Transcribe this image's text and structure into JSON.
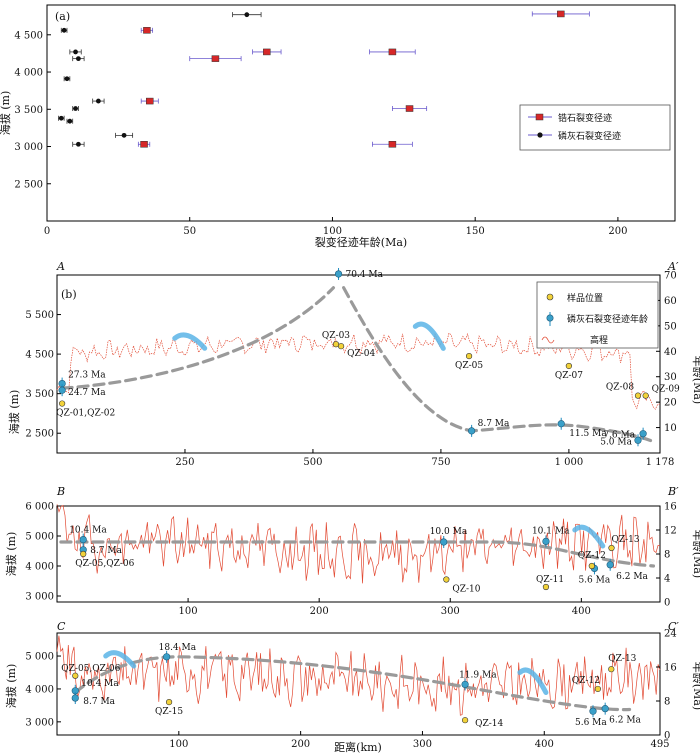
{
  "chart_data": [
    {
      "type": "scatter",
      "panel_label": "(a)",
      "xlabel": "裂变径迹年龄(Ma)",
      "ylabel": "海拔 (m)",
      "xlim": [
        0,
        220
      ],
      "ylim": [
        2000,
        4900
      ],
      "xticks": [
        0,
        50,
        100,
        150,
        200
      ],
      "yticks": [
        2500,
        3000,
        3500,
        4000,
        4500
      ],
      "legend": [
        "锆石裂变径迹",
        "磷灰石裂变径迹"
      ],
      "legend_position": "right",
      "series": [
        {
          "name": "锆石裂变径迹",
          "color": "#d62728",
          "points": [
            {
              "x": 35,
              "y": 4560,
              "err": 2
            },
            {
              "x": 180,
              "y": 4780,
              "err": 10
            },
            {
              "x": 77,
              "y": 4270,
              "err": 5
            },
            {
              "x": 59,
              "y": 4180,
              "err": 9
            },
            {
              "x": 121,
              "y": 4270,
              "err": 8
            },
            {
              "x": 36,
              "y": 3610,
              "err": 3
            },
            {
              "x": 127,
              "y": 3510,
              "err": 6
            },
            {
              "x": 34,
              "y": 3030,
              "err": 2
            },
            {
              "x": 121,
              "y": 3030,
              "err": 7
            }
          ]
        },
        {
          "name": "磷灰石裂变径迹",
          "color": "#111111",
          "points": [
            {
              "x": 70,
              "y": 4770,
              "err": 5
            },
            {
              "x": 6,
              "y": 4560,
              "err": 1
            },
            {
              "x": 10,
              "y": 4270,
              "err": 2
            },
            {
              "x": 11,
              "y": 4180,
              "err": 2
            },
            {
              "x": 7,
              "y": 3910,
              "err": 1
            },
            {
              "x": 18,
              "y": 3610,
              "err": 2
            },
            {
              "x": 10,
              "y": 3510,
              "err": 1
            },
            {
              "x": 5,
              "y": 3380,
              "err": 1
            },
            {
              "x": 8,
              "y": 3340,
              "err": 1
            },
            {
              "x": 27,
              "y": 3150,
              "err": 3
            },
            {
              "x": 11,
              "y": 3030,
              "err": 2
            }
          ]
        }
      ]
    },
    {
      "type": "line",
      "panel_label": "(b)",
      "profile_start": "A",
      "profile_end": "A′",
      "ylabel_left": "海拔 (m)",
      "ylabel_right": "年龄(Ma)",
      "xlim": [
        0,
        1178
      ],
      "ylim_left": [
        2000,
        6500
      ],
      "ylim_right": [
        0,
        70
      ],
      "xticks": [
        "250",
        "500",
        "750",
        "1 000",
        "1 178"
      ],
      "xtick_values": [
        250,
        500,
        750,
        1000,
        1178
      ],
      "yticks_left": [
        "2 500",
        "3 500",
        "4 500",
        "5 500"
      ],
      "ytick_left_values": [
        2500,
        3500,
        4500,
        5500
      ],
      "yticks_right": [
        10,
        20,
        30,
        40,
        50,
        60,
        70
      ],
      "legend": [
        "样品位置",
        "磷灰石裂变径迹年龄",
        "高程"
      ],
      "legend_position": "top-right",
      "ages": [
        {
          "x": 10,
          "age": 27.3,
          "label": "27.3 Ma"
        },
        {
          "x": 10,
          "age": 24.7,
          "label": "24.7 Ma"
        },
        {
          "x": 550,
          "age": 70.4,
          "label": "70.4 Ma"
        },
        {
          "x": 810,
          "age": 8.7,
          "label": "8.7 Ma"
        },
        {
          "x": 985,
          "age": 11.5,
          "label": "11.5 Ma"
        },
        {
          "x": 1145,
          "age": 7.6,
          "label": "7.6 Ma"
        },
        {
          "x": 1135,
          "age": 5.0,
          "label": "5.0 Ma"
        }
      ],
      "samples": [
        {
          "x": 10,
          "elev": 3250,
          "label": "QZ-01,QZ-02"
        },
        {
          "x": 545,
          "elev": 4750,
          "label": "QZ-03"
        },
        {
          "x": 555,
          "elev": 4700,
          "label": "QZ-04"
        },
        {
          "x": 805,
          "elev": 4450,
          "label": "QZ-05"
        },
        {
          "x": 1000,
          "elev": 4200,
          "label": "QZ-07"
        },
        {
          "x": 1135,
          "elev": 3450,
          "label": "QZ-08"
        },
        {
          "x": 1150,
          "elev": 3450,
          "label": "QZ-09"
        }
      ]
    },
    {
      "type": "line",
      "profile_start": "B",
      "profile_end": "B′",
      "ylabel_left": "海拔 (m)",
      "ylabel_right": "年龄(Ma)",
      "xlim": [
        0,
        460
      ],
      "ylim_left": [
        2800,
        6000
      ],
      "ylim_right": [
        0,
        16
      ],
      "xticks": [
        100,
        200,
        300,
        400
      ],
      "yticks_left": [
        "3 000",
        "4 000",
        "5 000",
        "6 000"
      ],
      "ytick_left_values": [
        3000,
        4000,
        5000,
        6000
      ],
      "yticks_right": [
        0,
        4,
        8,
        12,
        16
      ],
      "ages": [
        {
          "x": 20,
          "age": 10.4,
          "label": "10.4 Ma"
        },
        {
          "x": 20,
          "age": 8.7,
          "label": "8.7 Ma"
        },
        {
          "x": 295,
          "age": 10.0,
          "label": "10.0 Ma"
        },
        {
          "x": 373,
          "age": 10.1,
          "label": "10.1 Ma"
        },
        {
          "x": 410,
          "age": 5.6,
          "label": "5.6 Ma"
        },
        {
          "x": 422,
          "age": 6.2,
          "label": "6.2 Ma"
        }
      ],
      "samples": [
        {
          "x": 20,
          "elev": 4400,
          "label": "QZ-05,QZ-06"
        },
        {
          "x": 297,
          "elev": 3550,
          "label": "QZ-10"
        },
        {
          "x": 373,
          "elev": 3300,
          "label": "QZ-11"
        },
        {
          "x": 408,
          "elev": 4000,
          "label": "QZ-12"
        },
        {
          "x": 423,
          "elev": 4600,
          "label": "QZ-13"
        }
      ]
    },
    {
      "type": "line",
      "profile_start": "C",
      "profile_end": "C′",
      "xlabel": "距离(km)",
      "ylabel_left": "海拔 (m)",
      "ylabel_right": "年龄(Ma)",
      "xlim": [
        0,
        495
      ],
      "ylim_left": [
        2600,
        5700
      ],
      "ylim_right": [
        0,
        24
      ],
      "xticks": [
        "100",
        "200",
        "300",
        "400",
        "495"
      ],
      "xtick_values": [
        100,
        200,
        300,
        400,
        495
      ],
      "yticks_left": [
        "3 000",
        "4 000",
        "5 000"
      ],
      "ytick_left_values": [
        3000,
        4000,
        5000
      ],
      "yticks_right": [
        0,
        8,
        16,
        24
      ],
      "ages": [
        {
          "x": 15,
          "age": 10.4,
          "label": "10.4 Ma"
        },
        {
          "x": 15,
          "age": 8.7,
          "label": "8.7 Ma"
        },
        {
          "x": 90,
          "age": 18.4,
          "label": "18.4 Ma"
        },
        {
          "x": 335,
          "age": 11.9,
          "label": "11.9 Ma"
        },
        {
          "x": 440,
          "age": 5.6,
          "label": "5.6 Ma"
        },
        {
          "x": 450,
          "age": 6.2,
          "label": "6.2 Ma"
        }
      ],
      "samples": [
        {
          "x": 15,
          "elev": 4400,
          "label": "QZ-05,QZ-06"
        },
        {
          "x": 92,
          "elev": 3600,
          "label": "QZ-15"
        },
        {
          "x": 335,
          "elev": 3050,
          "label": "QZ-14"
        },
        {
          "x": 444,
          "elev": 4000,
          "label": "QZ-12"
        },
        {
          "x": 455,
          "elev": 4600,
          "label": "QZ-13"
        }
      ]
    }
  ]
}
